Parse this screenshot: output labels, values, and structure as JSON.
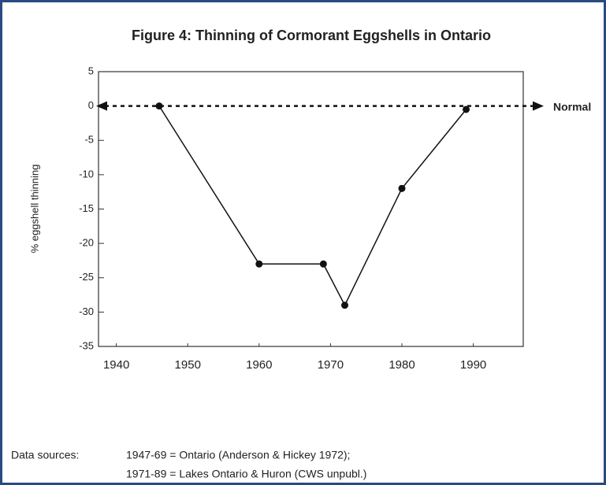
{
  "chart_data": {
    "type": "line",
    "title": "Figure 4: Thinning of Cormorant Eggshells in Ontario",
    "y_label": "% eggshell thinning",
    "x": [
      1946,
      1960,
      1969,
      1972,
      1980,
      1989
    ],
    "series": [
      {
        "name": "Eggshell thinning",
        "color": "#111111",
        "values": [
          0,
          -23,
          -23,
          -29,
          -12,
          -0.5
        ]
      }
    ],
    "xlim": [
      1937.5,
      1997
    ],
    "xticks": [
      1940,
      1950,
      1960,
      1970,
      1980,
      1990
    ],
    "ylim": [
      -35,
      5
    ],
    "yticks": [
      5,
      0,
      -5,
      -10,
      -15,
      -20,
      -25,
      -30,
      -35
    ],
    "reference_line": {
      "value": 0,
      "label": "Normal"
    },
    "sources": {
      "label": "Data sources:",
      "lines": [
        "1947-69 = Ontario (Anderson & Hickey 1972);",
        "1971-89 = Lakes Ontario & Huron (CWS unpubl.)"
      ]
    }
  }
}
